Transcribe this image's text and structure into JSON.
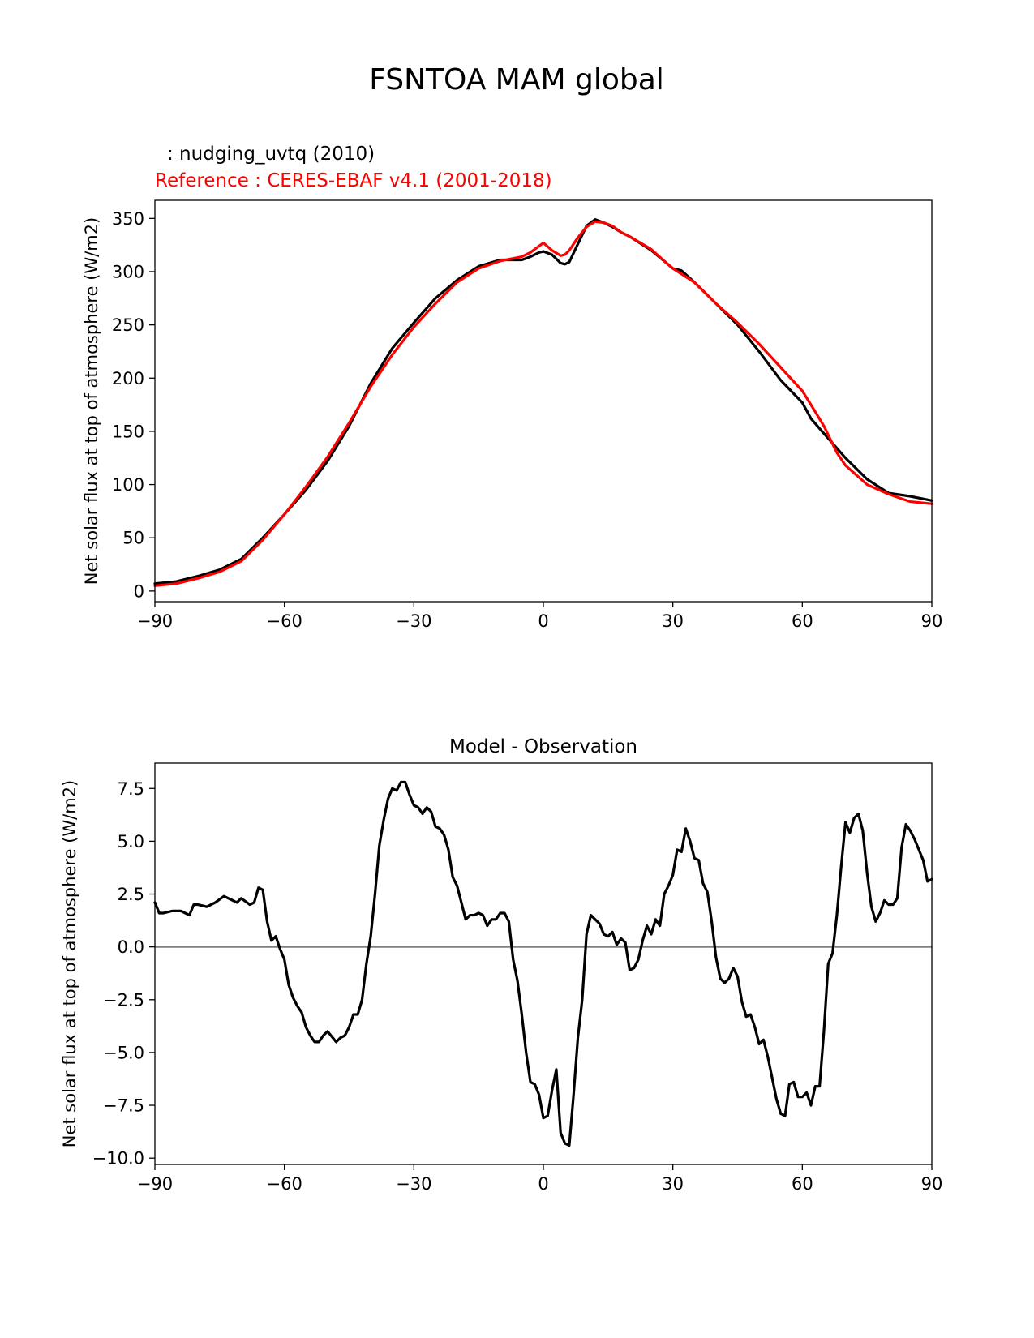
{
  "figure": {
    "title": "FSNTOA MAM global",
    "test_label": ": nudging_uvtq (2010)",
    "ref_label": "Reference : CERES-EBAF v4.1 (2001-2018)"
  },
  "colors": {
    "test": "#000000",
    "reference": "#ff0000",
    "zero_line": "#808080"
  },
  "chart_data": [
    {
      "type": "line",
      "title": "",
      "xlabel": "",
      "ylabel": "Net solar flux at top of atmosphere (W/m2)",
      "xlim": [
        -90,
        90
      ],
      "ylim": [
        -10,
        367
      ],
      "xticks": [
        -90,
        -60,
        -30,
        0,
        30,
        60,
        90
      ],
      "xtick_labels": [
        "−90",
        "−60",
        "−30",
        "0",
        "30",
        "60",
        "90"
      ],
      "yticks": [
        0,
        50,
        100,
        150,
        200,
        250,
        300,
        350
      ],
      "ytick_labels": [
        "0",
        "50",
        "100",
        "150",
        "200",
        "250",
        "300",
        "350"
      ],
      "grid": false,
      "series": [
        {
          "key": "test",
          "x": [
            -90,
            -85,
            -80,
            -75,
            -70,
            -65,
            -60,
            -55,
            -50,
            -45,
            -40,
            -35,
            -30,
            -25,
            -20,
            -15,
            -10,
            -5,
            -3,
            -1,
            0,
            2,
            4,
            5,
            6,
            8,
            10,
            12,
            14,
            16,
            18,
            20,
            25,
            30,
            32,
            35,
            40,
            45,
            50,
            55,
            60,
            62,
            65,
            70,
            75,
            80,
            85,
            90
          ],
          "y": [
            7,
            9,
            14,
            20,
            30,
            50,
            72,
            95,
            122,
            155,
            195,
            228,
            252,
            275,
            292,
            305,
            311,
            311,
            314,
            318,
            319,
            316,
            308,
            307,
            309,
            326,
            343,
            349,
            346,
            342,
            337,
            333,
            320,
            303,
            301,
            290,
            270,
            250,
            225,
            198,
            177,
            162,
            148,
            125,
            105,
            92,
            89,
            85
          ]
        },
        {
          "key": "reference",
          "x": [
            -90,
            -85,
            -80,
            -75,
            -70,
            -65,
            -60,
            -55,
            -50,
            -45,
            -40,
            -35,
            -30,
            -25,
            -20,
            -15,
            -10,
            -5,
            -3,
            -1,
            0,
            2,
            4,
            5,
            6,
            8,
            10,
            12,
            14,
            16,
            18,
            20,
            25,
            28,
            30,
            35,
            40,
            45,
            50,
            55,
            60,
            62,
            65,
            68,
            70,
            75,
            80,
            85,
            90
          ],
          "y": [
            5,
            7,
            12,
            18,
            28,
            48,
            72,
            98,
            126,
            158,
            192,
            222,
            248,
            270,
            290,
            303,
            310,
            314,
            318,
            324,
            327,
            320,
            315,
            316,
            320,
            332,
            342,
            347,
            346,
            343,
            337,
            333,
            321,
            310,
            303,
            290,
            270,
            252,
            232,
            210,
            188,
            175,
            155,
            130,
            118,
            100,
            91,
            84,
            82
          ]
        }
      ]
    },
    {
      "type": "line",
      "title": "Model - Observation",
      "xlabel": "",
      "ylabel": "Net solar flux at top of atmosphere (W/m2)",
      "xlim": [
        -90,
        90
      ],
      "ylim": [
        -10.3,
        8.7
      ],
      "xticks": [
        -90,
        -60,
        -30,
        0,
        30,
        60,
        90
      ],
      "xtick_labels": [
        "−90",
        "−60",
        "−30",
        "0",
        "30",
        "60",
        "90"
      ],
      "yticks": [
        7.5,
        5.0,
        2.5,
        0.0,
        -2.5,
        -5.0,
        -7.5,
        -10.0
      ],
      "ytick_labels": [
        "7.5",
        "5.0",
        "2.5",
        "0.0",
        "−2.5",
        "−5.0",
        "−7.5",
        "−10.0"
      ],
      "grid": false,
      "zero_line": 0,
      "series": [
        {
          "key": "test",
          "x": [
            -90,
            -89,
            -88,
            -86,
            -84,
            -82,
            -81,
            -80,
            -78,
            -76,
            -74,
            -72,
            -71,
            -70,
            -68,
            -67,
            -66,
            -65,
            -64,
            -63,
            -62,
            -61,
            -60,
            -59,
            -58,
            -57,
            -56,
            -55,
            -54,
            -53,
            -52,
            -51,
            -50,
            -48,
            -47,
            -46,
            -45,
            -44,
            -43,
            -42,
            -41,
            -40,
            -39,
            -38,
            -37,
            -36,
            -35,
            -34,
            -33,
            -32,
            -31,
            -30,
            -29,
            -28,
            -27,
            -26,
            -25,
            -24,
            -23,
            -22,
            -21,
            -20,
            -19,
            -18,
            -17,
            -16,
            -15,
            -14,
            -13,
            -12,
            -11,
            -10,
            -9,
            -8,
            -7,
            -6,
            -5,
            -4,
            -3,
            -2,
            -1,
            0,
            1,
            2,
            3,
            4,
            5,
            6,
            7,
            8,
            9,
            10,
            11,
            12,
            13,
            14,
            15,
            16,
            17,
            18,
            19,
            20,
            21,
            22,
            23,
            24,
            25,
            26,
            27,
            28,
            29,
            30,
            31,
            32,
            33,
            34,
            35,
            36,
            37,
            38,
            39,
            40,
            41,
            42,
            43,
            44,
            45,
            46,
            47,
            48,
            49,
            50,
            51,
            52,
            53,
            54,
            55,
            56,
            57,
            58,
            59,
            60,
            61,
            62,
            63,
            64,
            65,
            66,
            67,
            68,
            69,
            70,
            71,
            72,
            73,
            74,
            75,
            76,
            77,
            78,
            79,
            80,
            81,
            82,
            83,
            84,
            85,
            86,
            87,
            88,
            89,
            90
          ],
          "y": [
            2.1,
            1.6,
            1.6,
            1.7,
            1.7,
            1.5,
            2.0,
            2.0,
            1.9,
            2.1,
            2.4,
            2.2,
            2.1,
            2.3,
            2.0,
            2.1,
            2.8,
            2.7,
            1.2,
            0.3,
            0.5,
            -0.1,
            -0.6,
            -1.8,
            -2.4,
            -2.8,
            -3.1,
            -3.8,
            -4.2,
            -4.5,
            -4.5,
            -4.2,
            -4.0,
            -4.5,
            -4.3,
            -4.2,
            -3.8,
            -3.2,
            -3.2,
            -2.5,
            -0.8,
            0.5,
            2.5,
            4.8,
            6.0,
            7.0,
            7.5,
            7.4,
            7.8,
            7.8,
            7.2,
            6.7,
            6.6,
            6.3,
            6.6,
            6.4,
            5.7,
            5.6,
            5.3,
            4.6,
            3.3,
            2.9,
            2.1,
            1.3,
            1.5,
            1.5,
            1.6,
            1.5,
            1.0,
            1.3,
            1.3,
            1.6,
            1.6,
            1.2,
            -0.6,
            -1.6,
            -3.2,
            -5.0,
            -6.4,
            -6.5,
            -7.0,
            -8.1,
            -8.0,
            -6.8,
            -5.8,
            -8.8,
            -9.3,
            -9.4,
            -7.0,
            -4.3,
            -2.5,
            0.6,
            1.5,
            1.3,
            1.1,
            0.6,
            0.5,
            0.7,
            0.1,
            0.4,
            0.2,
            -1.1,
            -1.0,
            -0.6,
            0.3,
            1.0,
            0.6,
            1.3,
            1.0,
            2.5,
            2.9,
            3.4,
            4.6,
            4.5,
            5.6,
            5.0,
            4.2,
            4.1,
            3.0,
            2.6,
            1.2,
            -0.5,
            -1.5,
            -1.7,
            -1.5,
            -1.0,
            -1.4,
            -2.6,
            -3.3,
            -3.2,
            -3.8,
            -4.6,
            -4.4,
            -5.2,
            -6.2,
            -7.2,
            -7.9,
            -8.0,
            -6.5,
            -6.4,
            -7.1,
            -7.1,
            -6.9,
            -7.5,
            -6.6,
            -6.6,
            -4.0,
            -0.8,
            -0.3,
            1.5,
            3.8,
            5.9,
            5.4,
            6.1,
            6.3,
            5.5,
            3.5,
            1.9,
            1.2,
            1.6,
            2.2,
            2.0,
            2.0,
            2.3,
            4.7,
            5.8,
            5.5,
            5.1,
            4.6,
            4.1,
            3.1,
            3.2
          ]
        }
      ]
    }
  ]
}
